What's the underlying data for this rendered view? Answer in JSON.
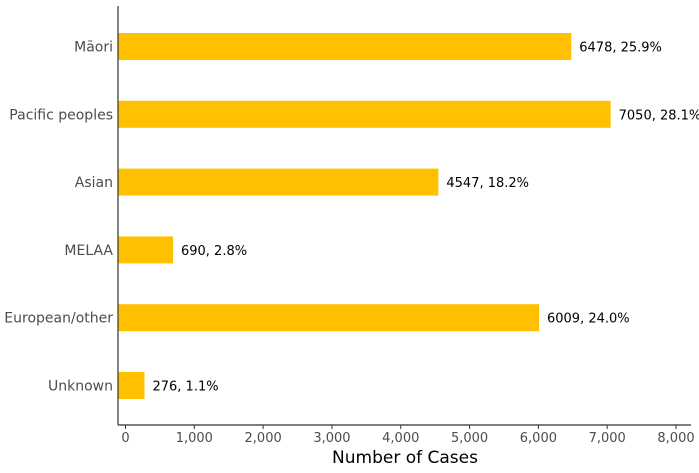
{
  "chart_data": {
    "type": "bar",
    "orientation": "horizontal",
    "categories": [
      "Māori",
      "Pacific peoples",
      "Asian",
      "MELAA",
      "European/other",
      "Unknown"
    ],
    "values": [
      6478,
      7050,
      4547,
      690,
      6009,
      276
    ],
    "data_labels": [
      "6478, 25.9%",
      "7050, 28.1%",
      "4547, 18.2%",
      "690, 2.8%",
      "6009, 24.0%",
      "276, 1.1%"
    ],
    "xlabel": "Number of Cases",
    "ylabel": "",
    "title": "",
    "xlim": [
      0,
      8000
    ],
    "x_ticks": [
      0,
      1000,
      2000,
      3000,
      4000,
      5000,
      6000,
      7000,
      8000
    ],
    "x_tick_labels": [
      "0",
      "1,000",
      "2,000",
      "3,000",
      "4,000",
      "5,000",
      "6,000",
      "7,000",
      "8,000"
    ],
    "grid": false,
    "colors": {
      "bar": "#FFC000",
      "axis": "#333333"
    }
  }
}
